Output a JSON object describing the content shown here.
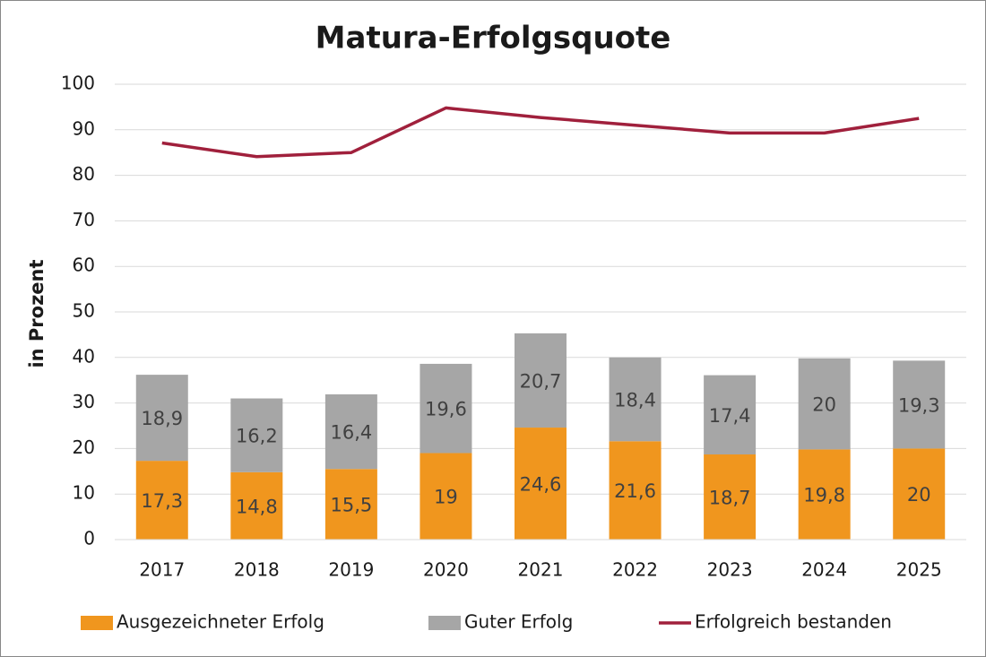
{
  "chart_data": {
    "type": "bar",
    "stacked": true,
    "title": "Matura-Erfolgsquote",
    "y_label": "in Prozent",
    "categories": [
      "2017",
      "2018",
      "2019",
      "2020",
      "2021",
      "2022",
      "2023",
      "2024",
      "2025"
    ],
    "series": [
      {
        "name": "Ausgezeichneter Erfolg",
        "color": "#f0961e",
        "values": [
          17.3,
          14.8,
          15.5,
          19,
          24.6,
          21.6,
          18.7,
          19.8,
          20
        ],
        "value_labels": [
          "17,3",
          "14,8",
          "15,5",
          "19",
          "24,6",
          "21,6",
          "18,7",
          "19,8",
          "20"
        ]
      },
      {
        "name": "Guter Erfolg",
        "color": "#a6a6a6",
        "values": [
          18.9,
          16.2,
          16.4,
          19.6,
          20.7,
          18.4,
          17.4,
          20,
          19.3
        ],
        "value_labels": [
          "18,9",
          "16,2",
          "16,4",
          "19,6",
          "20,7",
          "18,4",
          "17,4",
          "20",
          "19,3"
        ]
      },
      {
        "name": "Erfolgreich bestanden",
        "color": "#a0203c",
        "type": "line",
        "values": [
          87.1,
          84.1,
          85,
          94.8,
          92.7,
          91,
          89.3,
          89.3,
          92.5
        ]
      }
    ],
    "ylim": [
      0,
      100
    ],
    "yticks": [
      0,
      10,
      20,
      30,
      40,
      50,
      60,
      70,
      80,
      90,
      100
    ],
    "grid": true,
    "legend": "bottom"
  }
}
